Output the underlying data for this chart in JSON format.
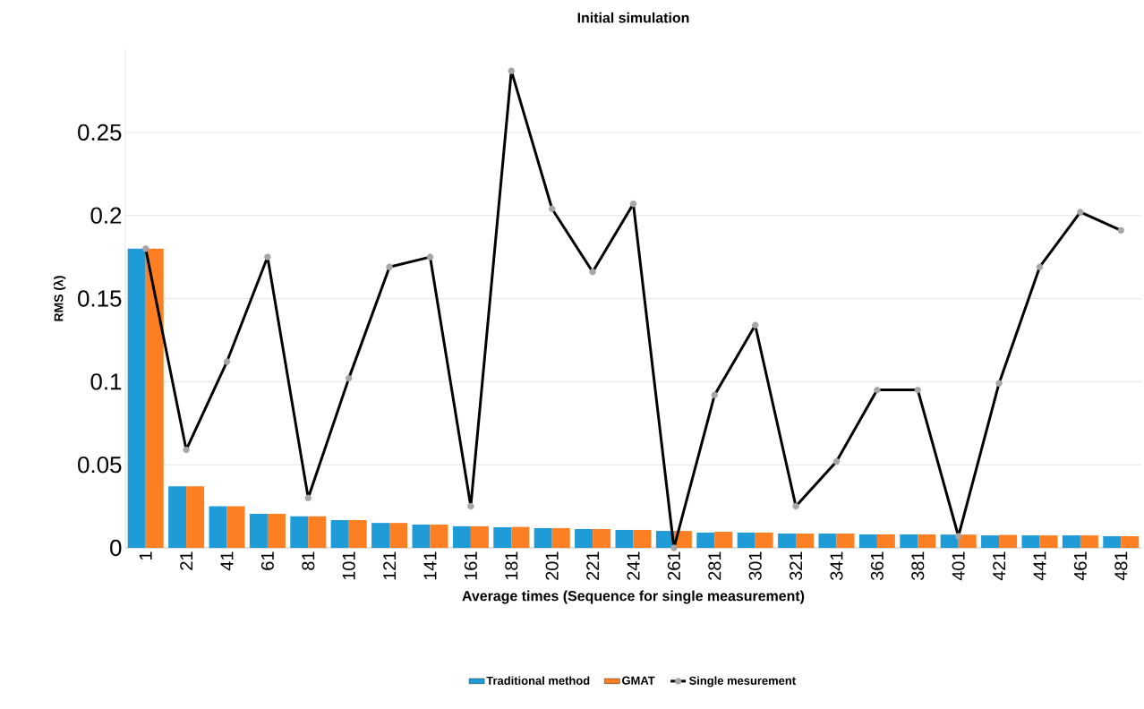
{
  "chart_data": {
    "type": "bar",
    "title": "Initial simulation",
    "xlabel": "Average times  (Sequence for single measurement)",
    "ylabel": "RMS  (λ)",
    "categories": [
      "1",
      "21",
      "41",
      "61",
      "81",
      "101",
      "121",
      "141",
      "161",
      "181",
      "201",
      "221",
      "241",
      "261",
      "281",
      "301",
      "321",
      "341",
      "361",
      "381",
      "401",
      "421",
      "441",
      "461",
      "481"
    ],
    "series": [
      {
        "name": "Traditional method",
        "color": "#1f9bd7",
        "values": [
          0.18,
          0.037,
          0.025,
          0.0205,
          0.019,
          0.0167,
          0.015,
          0.014,
          0.013,
          0.0124,
          0.0119,
          0.0113,
          0.0108,
          0.0102,
          0.0092,
          0.0092,
          0.0086,
          0.0086,
          0.0081,
          0.0081,
          0.008,
          0.0075,
          0.0075,
          0.0075,
          0.007
        ]
      },
      {
        "name": "GMAT",
        "color": "#fd7f23",
        "values": [
          0.18,
          0.037,
          0.025,
          0.0205,
          0.019,
          0.0167,
          0.015,
          0.014,
          0.013,
          0.0126,
          0.0119,
          0.0113,
          0.0108,
          0.0102,
          0.0097,
          0.0092,
          0.0086,
          0.0086,
          0.0081,
          0.0081,
          0.008,
          0.0078,
          0.0075,
          0.0075,
          0.007
        ]
      },
      {
        "name": "Single mesurement",
        "type": "line",
        "marker": "circle",
        "color": "#000000",
        "values": [
          0.18,
          0.059,
          0.112,
          0.175,
          0.03,
          0.102,
          0.169,
          0.175,
          0.025,
          0.287,
          0.204,
          0.166,
          0.207,
          0.0,
          0.092,
          0.134,
          0.025,
          0.052,
          0.095,
          0.095,
          0.007,
          0.099,
          0.169,
          0.202,
          0.191
        ]
      }
    ],
    "ylim": [
      0,
      0.3
    ],
    "yticks": [
      0,
      0.05,
      0.1,
      0.15,
      0.2,
      0.25
    ],
    "grid": "y",
    "legend": "bottom"
  }
}
